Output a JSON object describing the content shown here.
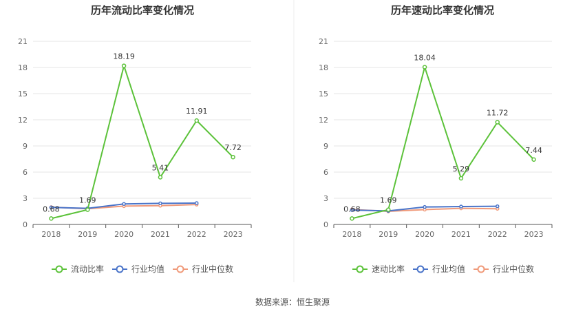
{
  "source_label": "数据来源：恒生聚源",
  "colors": {
    "primary": "#5cc23a",
    "avg": "#4a74c9",
    "median": "#f09a7a"
  },
  "chart_data": [
    {
      "type": "line",
      "title": "历年流动比率变化情况",
      "categories": [
        "2018",
        "2019",
        "2020",
        "2021",
        "2022",
        "2023"
      ],
      "ylim": [
        0,
        21
      ],
      "yticks": [
        0,
        3,
        6,
        9,
        12,
        15,
        18,
        21
      ],
      "grid": true,
      "legend_position": "bottom",
      "series": [
        {
          "name": "流动比率",
          "values": [
            0.68,
            1.69,
            18.19,
            5.41,
            11.91,
            7.72
          ],
          "labels": [
            "0.68",
            "1.69",
            "18.19",
            "5.41",
            "11.91",
            "7.72"
          ]
        },
        {
          "name": "行业均值",
          "values": [
            1.95,
            1.85,
            2.35,
            2.42,
            2.45,
            null
          ]
        },
        {
          "name": "行业中位数",
          "values": [
            1.98,
            1.8,
            2.1,
            2.15,
            2.28,
            null
          ]
        }
      ]
    },
    {
      "type": "line",
      "title": "历年速动比率变化情况",
      "categories": [
        "2018",
        "2019",
        "2020",
        "2021",
        "2022",
        "2023"
      ],
      "ylim": [
        0,
        21
      ],
      "yticks": [
        0,
        3,
        6,
        9,
        12,
        15,
        18,
        21
      ],
      "grid": true,
      "legend_position": "bottom",
      "series": [
        {
          "name": "速动比率",
          "values": [
            0.68,
            1.69,
            18.04,
            5.29,
            11.72,
            7.44
          ],
          "labels": [
            "0.68",
            "1.69",
            "18.04",
            "5.29",
            "11.72",
            "7.44"
          ]
        },
        {
          "name": "行业均值",
          "values": [
            1.65,
            1.55,
            2.0,
            2.05,
            2.08,
            null
          ]
        },
        {
          "name": "行业中位数",
          "values": [
            1.72,
            1.5,
            1.7,
            1.85,
            1.8,
            null
          ]
        }
      ]
    }
  ]
}
